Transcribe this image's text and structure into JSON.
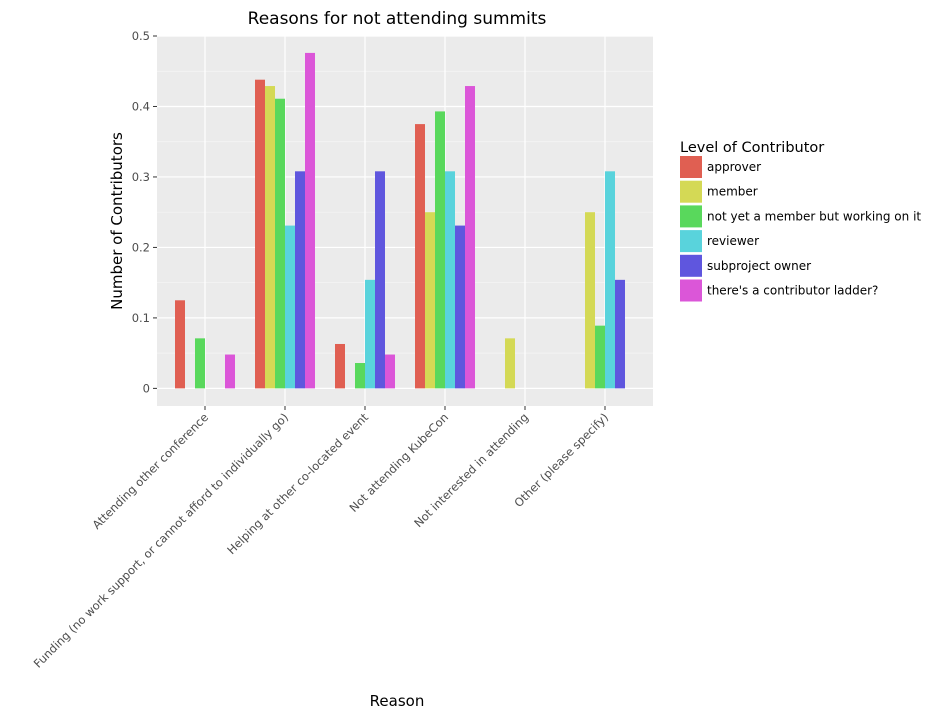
{
  "chart_data": {
    "type": "bar",
    "title": "Reasons for not attending summits",
    "xlabel": "Reason",
    "ylabel": "Number of Contributors",
    "ylim": [
      -0.025,
      0.5
    ],
    "yticks": [
      "0",
      "0.1",
      "0.2",
      "0.3",
      "0.4",
      "0.5"
    ],
    "ytick_values": [
      0,
      0.1,
      0.2,
      0.3,
      0.4,
      0.5
    ],
    "grid": true,
    "legend_placement": "right",
    "legend_title": "Level of Contributor",
    "categories": [
      "Attending other conference",
      "Funding (no work support, or cannot afford to individually go)",
      "Helping at other co-located event",
      "Not attending KubeCon",
      "Not interested in attending",
      "Other (please specify)"
    ],
    "series": [
      {
        "name": "approver",
        "color": "#e05f52",
        "values": [
          0.125,
          0.438,
          0.063,
          0.375,
          0,
          0
        ]
      },
      {
        "name": "member",
        "color": "#d4d955",
        "values": [
          0,
          0.429,
          0,
          0.25,
          0.071,
          0.25
        ]
      },
      {
        "name": "not yet a member but working on it",
        "color": "#59d85c",
        "values": [
          0.071,
          0.411,
          0.036,
          0.393,
          0,
          0.089
        ]
      },
      {
        "name": "reviewer",
        "color": "#59d3dc",
        "values": [
          0,
          0.231,
          0.154,
          0.308,
          0,
          0.308
        ]
      },
      {
        "name": "subproject owner",
        "color": "#5f56de",
        "values": [
          0,
          0.308,
          0.308,
          0.231,
          0,
          0.154
        ]
      },
      {
        "name": "there's a contributor ladder?",
        "color": "#db56d8",
        "values": [
          0.048,
          0.476,
          0.048,
          0.429,
          0,
          0
        ]
      }
    ]
  }
}
